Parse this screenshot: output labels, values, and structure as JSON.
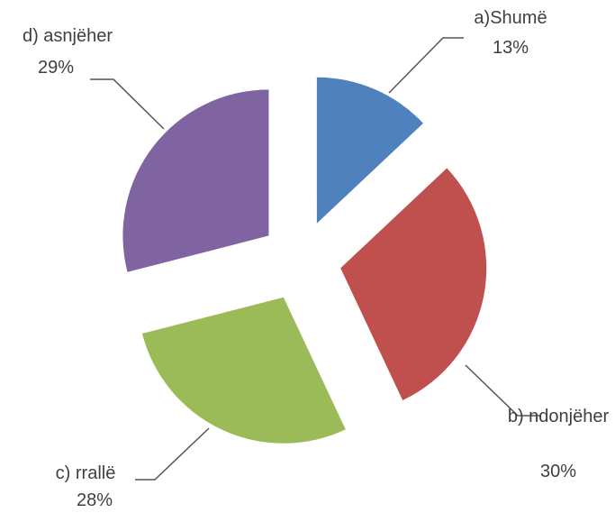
{
  "chart_data": {
    "type": "pie",
    "categories": [
      "a)Shumë",
      "b) ndonjëher",
      "c) rrallë",
      "d) asnjëher"
    ],
    "values": [
      13,
      30,
      28,
      29
    ],
    "value_labels": [
      "13%",
      "30%",
      "28%",
      "29%"
    ],
    "colors": [
      "#4f81bd",
      "#c0504d",
      "#9bbb59",
      "#8064a2"
    ],
    "exploded": true
  }
}
